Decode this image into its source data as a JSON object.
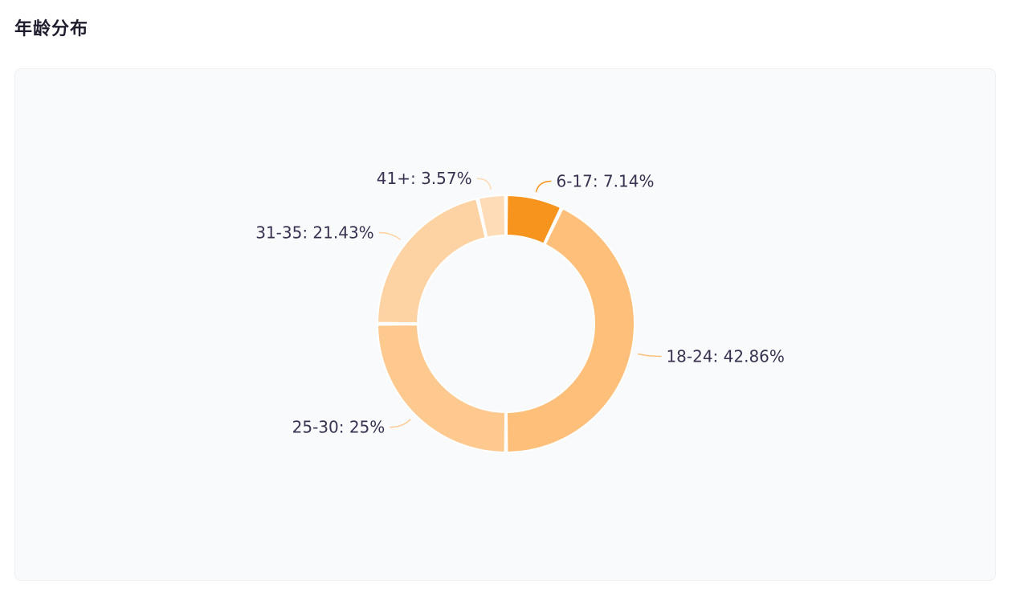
{
  "header": {
    "title": "年龄分布"
  },
  "chart_data": {
    "type": "pie",
    "donut": true,
    "categories": [
      "6-17",
      "18-24",
      "25-30",
      "31-35",
      "41+"
    ],
    "values": [
      7.14,
      42.86,
      25,
      21.43,
      3.57
    ],
    "labels": [
      "6-17: 7.14%",
      "18-24: 42.86%",
      "25-30: 25%",
      "31-35: 21.43%",
      "41+: 3.57%"
    ],
    "colors": [
      "#f7941d",
      "#fdbf7a",
      "#fec98f",
      "#fed3a4",
      "#fedcb8"
    ],
    "legend": "none"
  }
}
